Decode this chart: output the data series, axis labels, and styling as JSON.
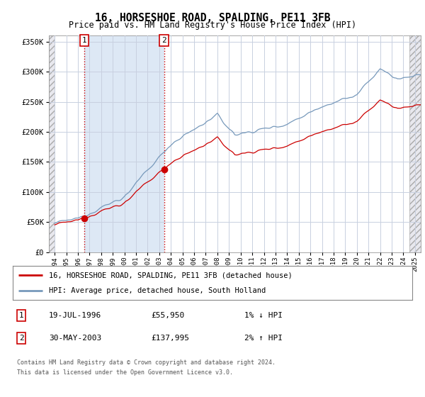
{
  "title": "16, HORSESHOE ROAD, SPALDING, PE11 3FB",
  "subtitle": "Price paid vs. HM Land Registry's House Price Index (HPI)",
  "sale1_year": 1996.54,
  "sale1_price": 55950,
  "sale2_year": 2003.41,
  "sale2_price": 137995,
  "hpi_label": "HPI: Average price, detached house, South Holland",
  "property_label": "16, HORSESHOE ROAD, SPALDING, PE11 3FB (detached house)",
  "footer1": "Contains HM Land Registry data © Crown copyright and database right 2024.",
  "footer2": "This data is licensed under the Open Government Licence v3.0.",
  "table_rows": [
    {
      "num": "1",
      "date": "19-JUL-1996",
      "price": "£55,950",
      "hpi": "1% ↓ HPI"
    },
    {
      "num": "2",
      "date": "30-MAY-2003",
      "price": "£137,995",
      "hpi": "2% ↑ HPI"
    }
  ],
  "bg_color": "#ffffff",
  "grid_color": "#c8d0e0",
  "red_line": "#cc0000",
  "blue_line": "#7799bb",
  "xmin": 1993.5,
  "xmax": 2025.5,
  "ymin": 0,
  "ymax": 360000,
  "hatch_left_end": 1994.0,
  "hatch_right_start": 2024.5,
  "shade_between_sales": true,
  "shade_color": "#dde8f5"
}
